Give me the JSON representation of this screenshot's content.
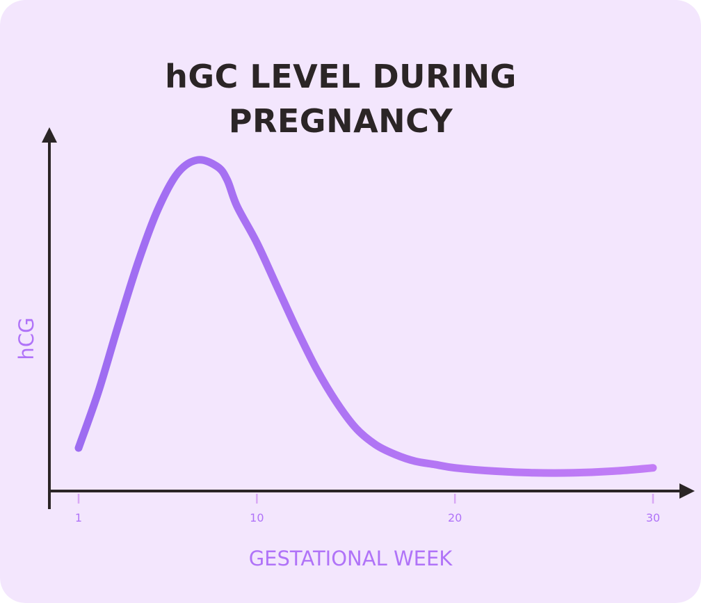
{
  "colors": {
    "background": "#f3e6fd",
    "axis": "#2b2526",
    "accent": "#b073f8",
    "tick": "#d9a8f5",
    "curve_start": "#9d6cf1",
    "curve_end": "#c27df6"
  },
  "chart_data": {
    "type": "line",
    "title_lines": [
      "hGC LEVEL DURING",
      "PREGNANCY"
    ],
    "xlabel": "GESTATIONAL WEEK",
    "ylabel": "hCG",
    "x_ticks": [
      1,
      10,
      20,
      30
    ],
    "xlim": [
      0,
      31
    ],
    "ylim": [
      0,
      1
    ],
    "grid": false,
    "legend": "none",
    "series": [
      {
        "x": [
          1,
          2,
          3,
          4,
          5,
          6,
          7,
          8,
          8.5,
          9,
          10,
          11,
          12,
          13,
          14,
          15,
          16,
          17,
          18,
          19,
          20,
          22,
          24,
          26,
          28,
          30
        ],
        "y": [
          0.13,
          0.3,
          0.5,
          0.69,
          0.85,
          0.96,
          1.0,
          0.98,
          0.94,
          0.86,
          0.75,
          0.62,
          0.49,
          0.37,
          0.27,
          0.19,
          0.14,
          0.11,
          0.09,
          0.08,
          0.07,
          0.06,
          0.055,
          0.055,
          0.06,
          0.07
        ]
      }
    ]
  }
}
